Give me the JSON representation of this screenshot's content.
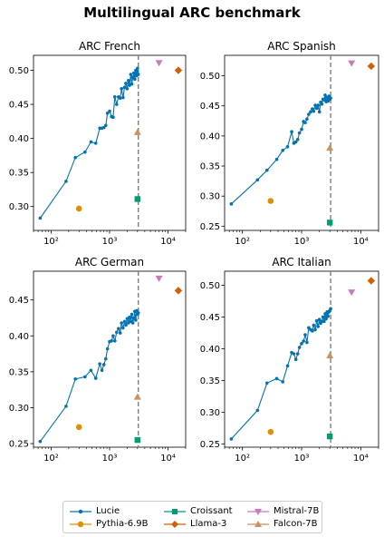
{
  "title": "Multilingual ARC benchmark",
  "colors": {
    "Lucie": "#0173b2",
    "Pythia-6.9B": "#de8f05",
    "Croissant": "#029e73",
    "Llama-3": "#d55e00",
    "Mistral-7B": "#cc78bc",
    "Falcon-7B": "#ca9161",
    "vline": "#7f7f7f"
  },
  "legend": [
    "Lucie",
    "Pythia-6.9B",
    "Croissant",
    "Llama-3",
    "Mistral-7B",
    "Falcon-7B"
  ],
  "chart_data": [
    {
      "type": "line",
      "title": "ARC French",
      "xscale": "log",
      "xlim": [
        50,
        20000
      ],
      "ylim": [
        0.265,
        0.522
      ],
      "yticks": [
        "0.30",
        "0.35",
        "0.40",
        "0.45",
        "0.50"
      ],
      "xticks": [
        "10²",
        "10³",
        "10⁴"
      ],
      "vline_x": 3100,
      "series": [
        {
          "name": "Lucie",
          "marker": "dot-line",
          "x": [
            65,
            180,
            260,
            380,
            480,
            580,
            680,
            740,
            800,
            860,
            920,
            1000,
            1080,
            1150,
            1230,
            1320,
            1420,
            1520,
            1600,
            1700,
            1800,
            1900,
            2000,
            2100,
            2200,
            2300,
            2400,
            2500,
            2600,
            2700,
            2800,
            2900,
            3000,
            3100
          ],
          "y": [
            0.283,
            0.337,
            0.372,
            0.38,
            0.395,
            0.393,
            0.415,
            0.415,
            0.416,
            0.419,
            0.437,
            0.44,
            0.432,
            0.431,
            0.461,
            0.45,
            0.461,
            0.459,
            0.473,
            0.46,
            0.475,
            0.481,
            0.473,
            0.485,
            0.478,
            0.494,
            0.48,
            0.49,
            0.496,
            0.487,
            0.5,
            0.492,
            0.503,
            0.494
          ]
        },
        {
          "name": "Pythia-6.9B",
          "marker": "circle",
          "x": [
            300
          ],
          "y": [
            0.297
          ]
        },
        {
          "name": "Croissant",
          "marker": "square",
          "x": [
            3000
          ],
          "y": [
            0.311
          ]
        },
        {
          "name": "Llama-3",
          "marker": "diamond",
          "x": [
            15000
          ],
          "y": [
            0.5
          ]
        },
        {
          "name": "Mistral-7B",
          "marker": "triangle-down",
          "x": [
            7000
          ],
          "y": [
            0.511
          ]
        },
        {
          "name": "Falcon-7B",
          "marker": "triangle-up",
          "x": [
            3000
          ],
          "y": [
            0.409
          ]
        }
      ]
    },
    {
      "type": "line",
      "title": "ARC Spanish",
      "xscale": "log",
      "xlim": [
        50,
        20000
      ],
      "ylim": [
        0.243,
        0.534
      ],
      "yticks": [
        "0.25",
        "0.30",
        "0.35",
        "0.40",
        "0.45",
        "0.50"
      ],
      "xticks": [
        "10²",
        "10³",
        "10⁴"
      ],
      "vline_x": 3100,
      "series": [
        {
          "name": "Lucie",
          "marker": "dot-line",
          "x": [
            65,
            180,
            260,
            380,
            480,
            580,
            680,
            740,
            800,
            860,
            920,
            1000,
            1080,
            1150,
            1230,
            1320,
            1420,
            1520,
            1600,
            1700,
            1800,
            1900,
            2000,
            2100,
            2200,
            2300,
            2400,
            2500,
            2600,
            2700,
            2800,
            2900,
            3000,
            3100
          ],
          "y": [
            0.287,
            0.327,
            0.343,
            0.361,
            0.376,
            0.382,
            0.407,
            0.388,
            0.39,
            0.394,
            0.405,
            0.411,
            0.424,
            0.422,
            0.428,
            0.436,
            0.44,
            0.445,
            0.441,
            0.451,
            0.446,
            0.451,
            0.44,
            0.456,
            0.453,
            0.461,
            0.46,
            0.468,
            0.457,
            0.464,
            0.458,
            0.466,
            0.461,
            0.463
          ]
        },
        {
          "name": "Pythia-6.9B",
          "marker": "circle",
          "x": [
            300
          ],
          "y": [
            0.292
          ]
        },
        {
          "name": "Croissant",
          "marker": "square",
          "x": [
            3000
          ],
          "y": [
            0.256
          ]
        },
        {
          "name": "Llama-3",
          "marker": "diamond",
          "x": [
            15000
          ],
          "y": [
            0.516
          ]
        },
        {
          "name": "Mistral-7B",
          "marker": "triangle-down",
          "x": [
            7000
          ],
          "y": [
            0.521
          ]
        },
        {
          "name": "Falcon-7B",
          "marker": "triangle-up",
          "x": [
            3000
          ],
          "y": [
            0.38
          ]
        }
      ]
    },
    {
      "type": "line",
      "title": "ARC German",
      "xscale": "log",
      "xlim": [
        50,
        20000
      ],
      "ylim": [
        0.245,
        0.49
      ],
      "yticks": [
        "0.25",
        "0.30",
        "0.35",
        "0.40",
        "0.45"
      ],
      "xticks": [
        "10²",
        "10³",
        "10⁴"
      ],
      "vline_x": 3100,
      "series": [
        {
          "name": "Lucie",
          "marker": "dot-line",
          "x": [
            65,
            180,
            260,
            380,
            480,
            580,
            680,
            740,
            800,
            860,
            920,
            1000,
            1080,
            1150,
            1230,
            1320,
            1420,
            1520,
            1600,
            1700,
            1800,
            1900,
            2000,
            2100,
            2200,
            2300,
            2400,
            2500,
            2600,
            2700,
            2800,
            2900,
            3000,
            3100
          ],
          "y": [
            0.253,
            0.302,
            0.34,
            0.343,
            0.352,
            0.341,
            0.361,
            0.352,
            0.36,
            0.368,
            0.382,
            0.392,
            0.393,
            0.4,
            0.393,
            0.405,
            0.41,
            0.404,
            0.418,
            0.411,
            0.42,
            0.415,
            0.424,
            0.418,
            0.426,
            0.42,
            0.43,
            0.418,
            0.425,
            0.434,
            0.422,
            0.435,
            0.43,
            0.432
          ]
        },
        {
          "name": "Pythia-6.9B",
          "marker": "circle",
          "x": [
            300
          ],
          "y": [
            0.273
          ]
        },
        {
          "name": "Croissant",
          "marker": "square",
          "x": [
            3000
          ],
          "y": [
            0.255
          ]
        },
        {
          "name": "Llama-3",
          "marker": "diamond",
          "x": [
            15000
          ],
          "y": [
            0.463
          ]
        },
        {
          "name": "Mistral-7B",
          "marker": "triangle-down",
          "x": [
            7000
          ],
          "y": [
            0.48
          ]
        },
        {
          "name": "Falcon-7B",
          "marker": "triangle-up",
          "x": [
            3000
          ],
          "y": [
            0.315
          ]
        }
      ]
    },
    {
      "type": "line",
      "title": "ARC Italian",
      "xscale": "log",
      "xlim": [
        50,
        20000
      ],
      "ylim": [
        0.245,
        0.522
      ],
      "yticks": [
        "0.25",
        "0.30",
        "0.35",
        "0.40",
        "0.45",
        "0.50"
      ],
      "xticks": [
        "10²",
        "10³",
        "10⁴"
      ],
      "vline_x": 3100,
      "series": [
        {
          "name": "Lucie",
          "marker": "dot-line",
          "x": [
            65,
            180,
            260,
            380,
            480,
            580,
            680,
            740,
            800,
            860,
            920,
            1000,
            1080,
            1150,
            1230,
            1320,
            1420,
            1520,
            1600,
            1700,
            1800,
            1900,
            2000,
            2100,
            2200,
            2300,
            2400,
            2500,
            2600,
            2700,
            2800,
            2900,
            3000,
            3100
          ],
          "y": [
            0.258,
            0.303,
            0.346,
            0.353,
            0.348,
            0.373,
            0.394,
            0.392,
            0.383,
            0.392,
            0.402,
            0.408,
            0.412,
            0.422,
            0.41,
            0.433,
            0.43,
            0.428,
            0.437,
            0.43,
            0.444,
            0.435,
            0.446,
            0.44,
            0.443,
            0.45,
            0.443,
            0.455,
            0.447,
            0.458,
            0.451,
            0.458,
            0.46,
            0.463
          ]
        },
        {
          "name": "Pythia-6.9B",
          "marker": "circle",
          "x": [
            300
          ],
          "y": [
            0.269
          ]
        },
        {
          "name": "Croissant",
          "marker": "square",
          "x": [
            3000
          ],
          "y": [
            0.262
          ]
        },
        {
          "name": "Llama-3",
          "marker": "diamond",
          "x": [
            15000
          ],
          "y": [
            0.507
          ]
        },
        {
          "name": "Mistral-7B",
          "marker": "triangle-down",
          "x": [
            7000
          ],
          "y": [
            0.489
          ]
        },
        {
          "name": "Falcon-7B",
          "marker": "triangle-up",
          "x": [
            3000
          ],
          "y": [
            0.389
          ]
        }
      ]
    }
  ]
}
